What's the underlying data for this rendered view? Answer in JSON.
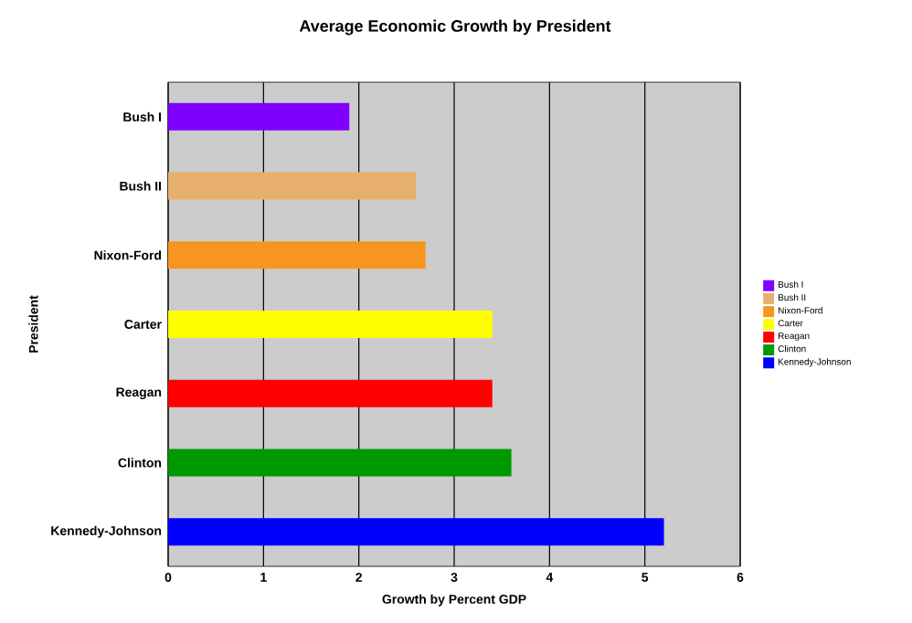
{
  "chart_data": {
    "type": "bar",
    "orientation": "horizontal",
    "title": "Average Economic Growth by President",
    "xlabel": "Growth by Percent GDP",
    "ylabel": "President",
    "categories": [
      "Bush I",
      "Bush II",
      "Nixon-Ford",
      "Carter",
      "Reagan",
      "Clinton",
      "Kennedy-Johnson"
    ],
    "series": [
      {
        "name": "Bush I",
        "color": "#7f00ff",
        "values": [
          1.9,
          null,
          null,
          null,
          null,
          null,
          null
        ]
      },
      {
        "name": "Bush II",
        "color": "#e6b06c",
        "values": [
          null,
          2.6,
          null,
          null,
          null,
          null,
          null
        ]
      },
      {
        "name": "Nixon-Ford",
        "color": "#f7961e",
        "values": [
          null,
          null,
          2.7,
          null,
          null,
          null,
          null
        ]
      },
      {
        "name": "Carter",
        "color": "#ffff00",
        "values": [
          null,
          null,
          null,
          3.4,
          null,
          null,
          null
        ]
      },
      {
        "name": "Reagan",
        "color": "#ff0000",
        "values": [
          null,
          null,
          null,
          null,
          3.4,
          null,
          null
        ]
      },
      {
        "name": "Clinton",
        "color": "#009900",
        "values": [
          null,
          null,
          null,
          null,
          null,
          3.6,
          null
        ]
      },
      {
        "name": "Kennedy-Johnson",
        "color": "#0000ff",
        "values": [
          null,
          null,
          null,
          null,
          null,
          null,
          5.2
        ]
      }
    ],
    "xlim": [
      0,
      6
    ],
    "xticks": [
      0,
      1,
      2,
      3,
      4,
      5,
      6
    ],
    "grid": "x",
    "legend": "right"
  }
}
